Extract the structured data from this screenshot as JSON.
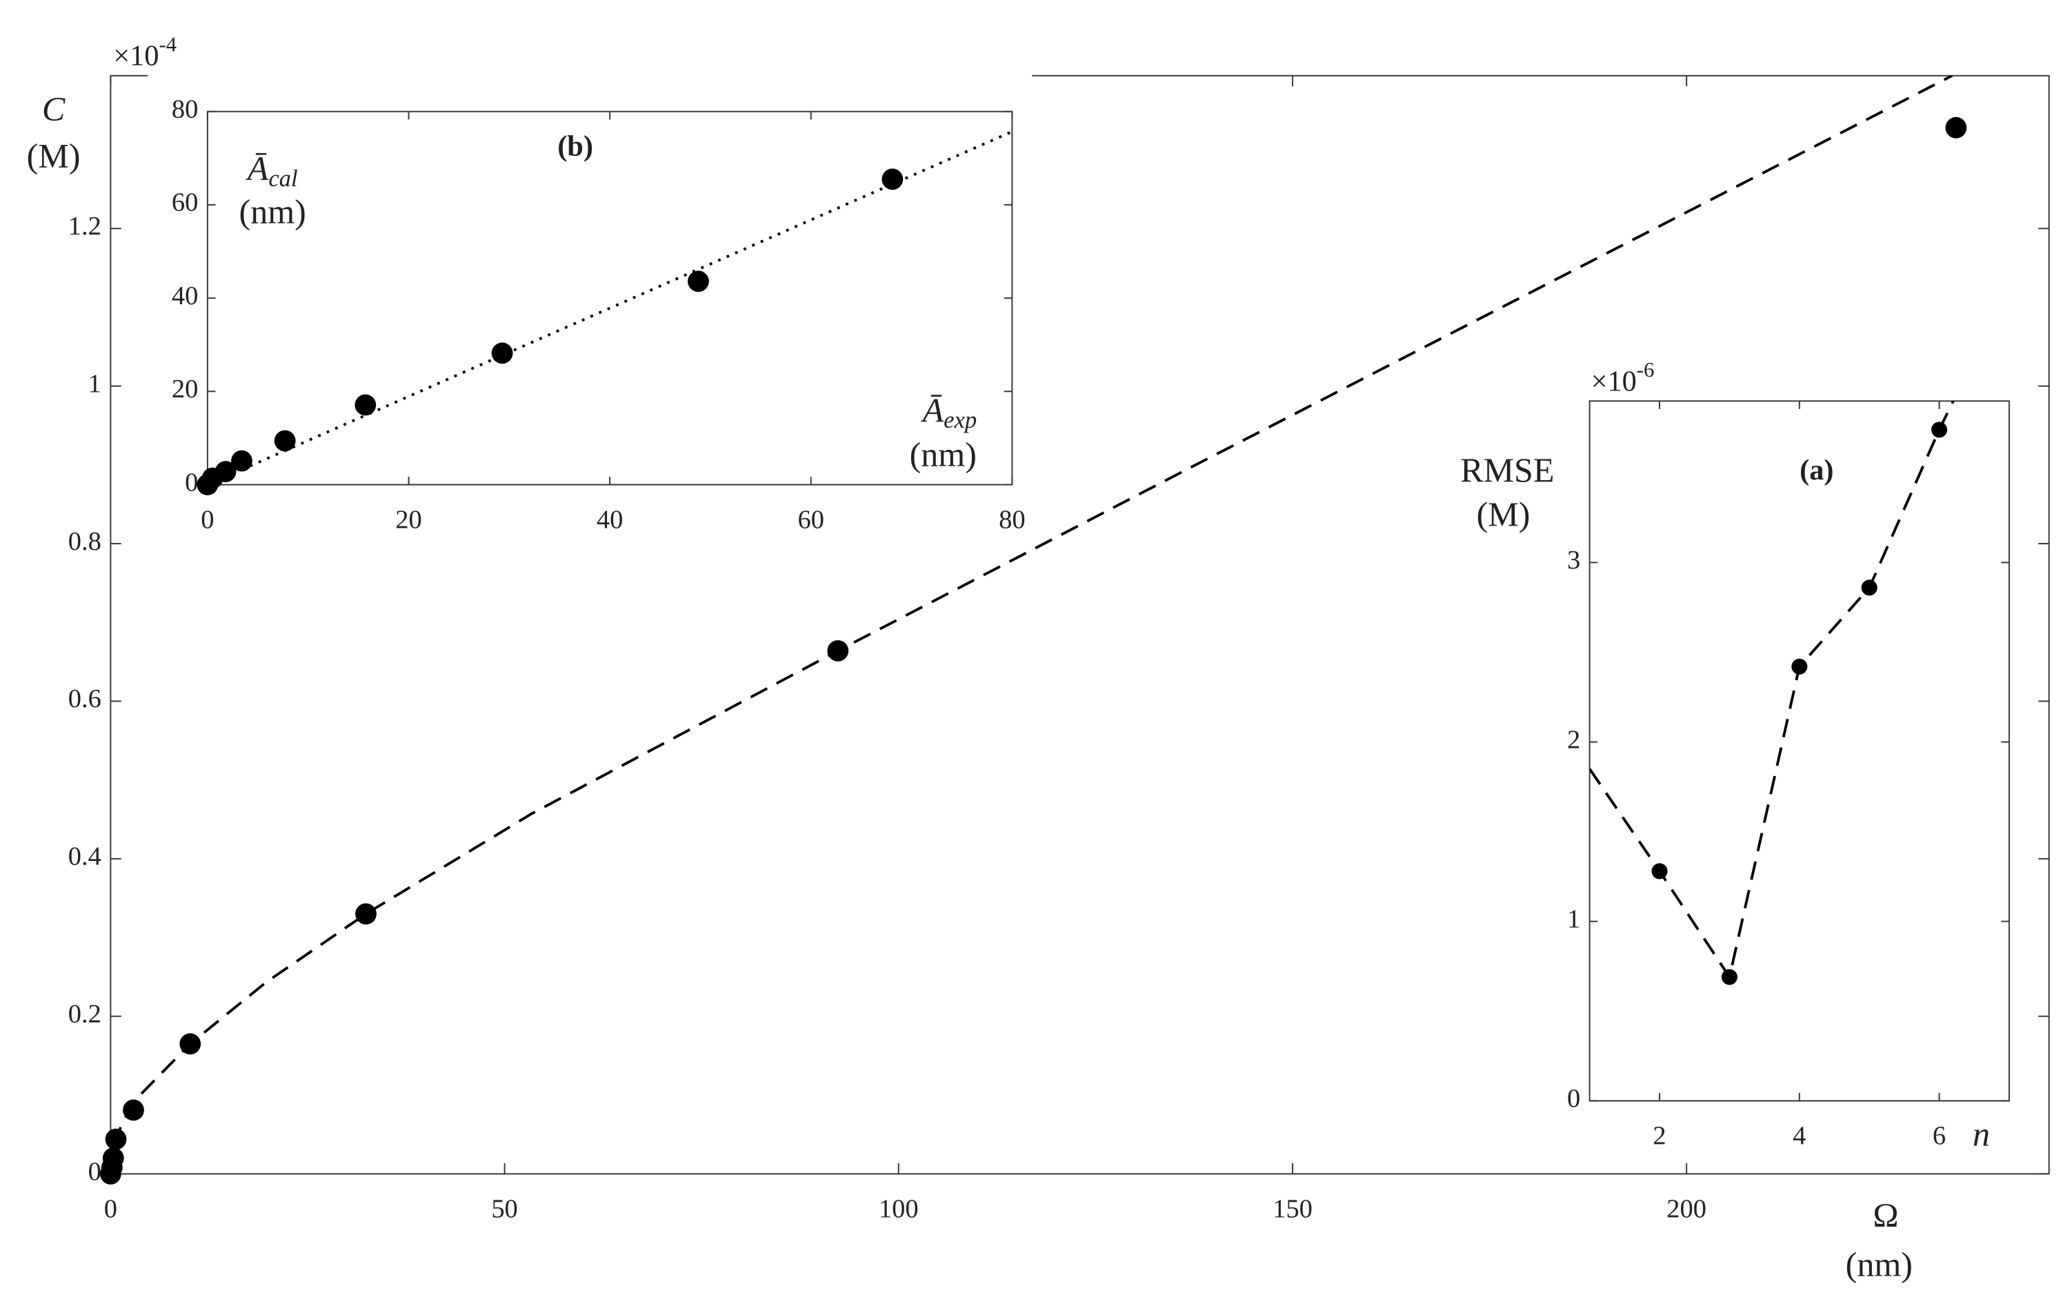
{
  "chart_data": [
    {
      "type": "scatter",
      "multiplier": {
        "base": "×10",
        "exponent": "-4"
      },
      "xlabel": "Ω",
      "xunit": "(nm)",
      "ylabel": "C",
      "yunit": "(M)",
      "xlim": [
        0,
        246
      ],
      "ylim": [
        0,
        1.394
      ],
      "xticks": [
        0,
        50,
        100,
        150,
        200
      ],
      "yticks": [
        0,
        0.2,
        0.4,
        0.6,
        0.8,
        1,
        1.2
      ],
      "series": [
        {
          "color": "#000000",
          "marker": true,
          "marker_size": 8,
          "x": [
            0,
            0.17,
            0.34,
            0.67,
            2.9,
            10.1,
            32.4,
            92.3,
            234.2
          ],
          "values": [
            0,
            0.008,
            0.02,
            0.044,
            0.081,
            0.165,
            0.33,
            0.664,
            1.328
          ]
        },
        {
          "color": "#000000",
          "line": "dashed",
          "x": [
            0,
            1.18,
            2.86,
            10.1,
            19.7,
            32.4,
            53.4,
            92.3,
            137.7,
            188.2,
            233.7
          ],
          "values": [
            0,
            0.057,
            0.091,
            0.165,
            0.243,
            0.33,
            0.457,
            0.664,
            0.9,
            1.16,
            1.394
          ]
        }
      ]
    },
    {
      "type": "scatter",
      "title": "(b)",
      "xlabel": "Ā",
      "xlabel_sub": "exp",
      "xunit": "(nm)",
      "ylabel": "Ā",
      "ylabel_sub": "cal",
      "yunit": "(nm)",
      "xlim": [
        0,
        80
      ],
      "ylim": [
        0,
        80
      ],
      "xticks": [
        0,
        20,
        40,
        60,
        80
      ],
      "yticks": [
        0,
        20,
        40,
        60,
        80
      ],
      "series": [
        {
          "color": "#000000",
          "marker": true,
          "marker_size": 8,
          "x": [
            0,
            0.5,
            1.8,
            3.4,
            7.7,
            15.7,
            29.3,
            48.8,
            68.1
          ],
          "values": [
            0,
            1.4,
            2.8,
            5.1,
            9.4,
            17.1,
            28.2,
            43.6,
            65.5
          ]
        },
        {
          "color": "#000000",
          "line": "dotted",
          "x": [
            0,
            80
          ],
          "values": [
            0,
            75.7
          ]
        }
      ]
    },
    {
      "type": "scatter",
      "title": "(a)",
      "multiplier": {
        "base": "×10",
        "exponent": "-6"
      },
      "xlabel": "n",
      "ylabel": "RMSE",
      "yunit": "(M)",
      "xlim": [
        1,
        7
      ],
      "ylim": [
        0,
        3.9
      ],
      "xticks": [
        2,
        4,
        6
      ],
      "yticks": [
        0,
        1,
        2,
        3
      ],
      "series": [
        {
          "color": "#000000",
          "marker": true,
          "marker_size": 6,
          "x": [
            2,
            3,
            4,
            5,
            6
          ],
          "values": [
            1.28,
            0.69,
            2.42,
            2.86,
            3.74
          ]
        },
        {
          "color": "#000000",
          "line": "dashed",
          "x": [
            1,
            2,
            3,
            4,
            5,
            6,
            6.2
          ],
          "values": [
            1.85,
            1.28,
            0.69,
            2.42,
            2.86,
            3.74,
            3.9
          ]
        }
      ]
    }
  ]
}
